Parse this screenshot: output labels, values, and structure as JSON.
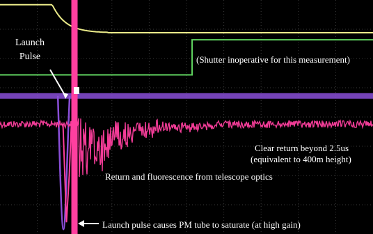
{
  "chart_data": {
    "type": "line",
    "title": "",
    "xlabel": "",
    "ylabel": "",
    "grid": true,
    "grid_divisions": {
      "x": 10,
      "y": 8
    },
    "colors": {
      "background": "#000000",
      "grid": "#3a3a3a",
      "shutter_trace": "#ecec8a",
      "gate_trace": "#5fd35f",
      "purple_trace": "#8a4fd8",
      "pink_trace": "#ff3f9f"
    },
    "series": [
      {
        "color_key": "shutter_trace",
        "level_high": 0.98,
        "level_low": 0.86,
        "fall_start_div": 1.4,
        "fall_end_div": 2.9
      },
      {
        "color_key": "gate_trace",
        "level_low": 0.68,
        "level_high": 0.83,
        "step_div": 5.15
      },
      {
        "color_key": "purple_trace",
        "baseline": 0.59,
        "pulse_div": 1.7,
        "pulse_min": 0.02
      },
      {
        "color_key": "pink_trace",
        "baseline": 0.47,
        "saturate_div": 1.95,
        "decay_tau_div": 1.1,
        "noise": 0.03
      }
    ],
    "annotations": [
      {
        "id": "launch",
        "lines": [
          "Launch",
          "Pulse"
        ]
      },
      {
        "id": "shutter",
        "text": "(Shutter inoperative for this measurement)"
      },
      {
        "id": "clear",
        "lines": [
          "Clear return beyond 2.5us",
          "(equivalent to 400m height)"
        ]
      },
      {
        "id": "fluor",
        "text": "Return and fluorescence from telescope optics"
      },
      {
        "id": "pm",
        "text": "Launch pulse causes PM tube to saturate (at high gain)"
      }
    ]
  }
}
